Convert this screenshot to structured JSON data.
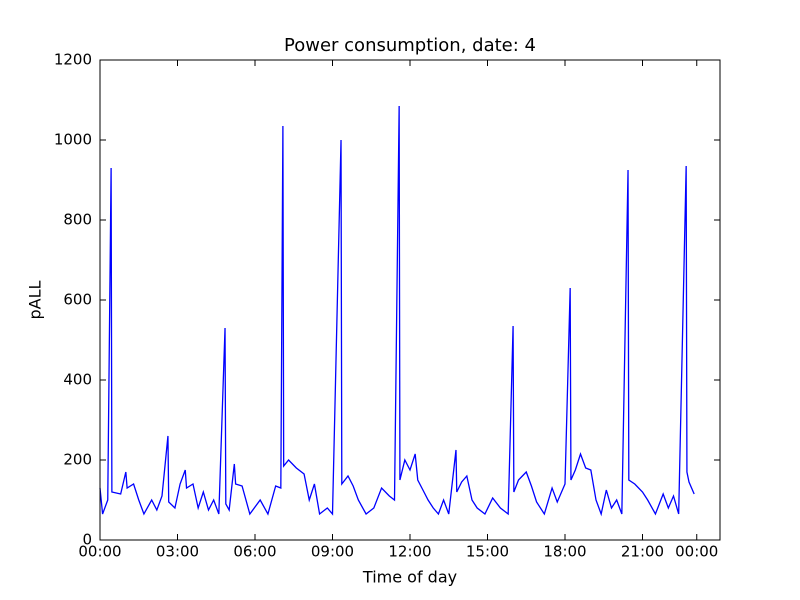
{
  "chart_data": {
    "type": "line",
    "title": "Power consumption, date:  4",
    "x_label": "Time of day",
    "y_label": "pALL",
    "x": [
      0.0,
      0.1,
      0.3,
      0.43,
      0.46,
      0.8,
      1.0,
      1.05,
      1.3,
      1.5,
      1.7,
      2.0,
      2.2,
      2.4,
      2.63,
      2.66,
      2.9,
      3.1,
      3.3,
      3.35,
      3.6,
      3.8,
      4.0,
      4.2,
      4.4,
      4.6,
      4.84,
      4.87,
      5.0,
      5.2,
      5.25,
      5.5,
      5.8,
      6.2,
      6.5,
      6.8,
      7.0,
      7.08,
      7.11,
      7.3,
      7.6,
      7.9,
      8.1,
      8.3,
      8.5,
      8.8,
      9.0,
      9.33,
      9.36,
      9.6,
      9.8,
      10.0,
      10.3,
      10.6,
      10.9,
      11.2,
      11.4,
      11.58,
      11.61,
      11.8,
      12.0,
      12.2,
      12.3,
      12.5,
      12.7,
      12.9,
      13.1,
      13.3,
      13.5,
      13.78,
      13.81,
      14.0,
      14.2,
      14.4,
      14.6,
      14.9,
      15.2,
      15.5,
      15.8,
      15.99,
      16.02,
      16.2,
      16.5,
      16.7,
      16.9,
      17.2,
      17.5,
      17.7,
      18.0,
      18.2,
      18.23,
      18.4,
      18.6,
      18.8,
      19.0,
      19.2,
      19.4,
      19.6,
      19.8,
      20.0,
      20.2,
      20.44,
      20.47,
      20.7,
      21.0,
      21.2,
      21.5,
      21.8,
      22.0,
      22.2,
      22.4,
      22.69,
      22.72,
      22.8,
      23.0
    ],
    "series": [
      {
        "name": "pALL",
        "color": "#0000ff",
        "values": [
          130,
          65,
          100,
          930,
          120,
          115,
          170,
          130,
          140,
          100,
          65,
          100,
          75,
          110,
          260,
          95,
          80,
          140,
          175,
          130,
          140,
          80,
          120,
          75,
          100,
          65,
          530,
          90,
          75,
          190,
          140,
          135,
          65,
          100,
          65,
          135,
          130,
          1035,
          185,
          200,
          180,
          165,
          100,
          140,
          65,
          80,
          65,
          1000,
          140,
          160,
          135,
          100,
          65,
          80,
          130,
          110,
          100,
          1085,
          150,
          200,
          175,
          215,
          150,
          125,
          100,
          80,
          65,
          100,
          65,
          225,
          120,
          145,
          160,
          100,
          80,
          65,
          105,
          80,
          65,
          535,
          120,
          150,
          170,
          135,
          95,
          65,
          130,
          95,
          140,
          630,
          150,
          175,
          215,
          180,
          175,
          100,
          65,
          125,
          80,
          100,
          65,
          925,
          150,
          140,
          120,
          100,
          65,
          115,
          80,
          110,
          65,
          935,
          170,
          145,
          115
        ]
      }
    ],
    "xlim": [
      0,
      24
    ],
    "ylim": [
      0,
      1200
    ],
    "xticks": [
      {
        "value": 0,
        "label": "00:00"
      },
      {
        "value": 3,
        "label": "03:00"
      },
      {
        "value": 6,
        "label": "06:00"
      },
      {
        "value": 9,
        "label": "09:00"
      },
      {
        "value": 12,
        "label": "12:00"
      },
      {
        "value": 15,
        "label": "15:00"
      },
      {
        "value": 18,
        "label": "18:00"
      },
      {
        "value": 21,
        "label": "21:00"
      },
      {
        "value": 23.1,
        "label": "00:00"
      }
    ],
    "yticks": [
      0,
      200,
      400,
      600,
      800,
      1000,
      1200
    ],
    "grid": false
  }
}
